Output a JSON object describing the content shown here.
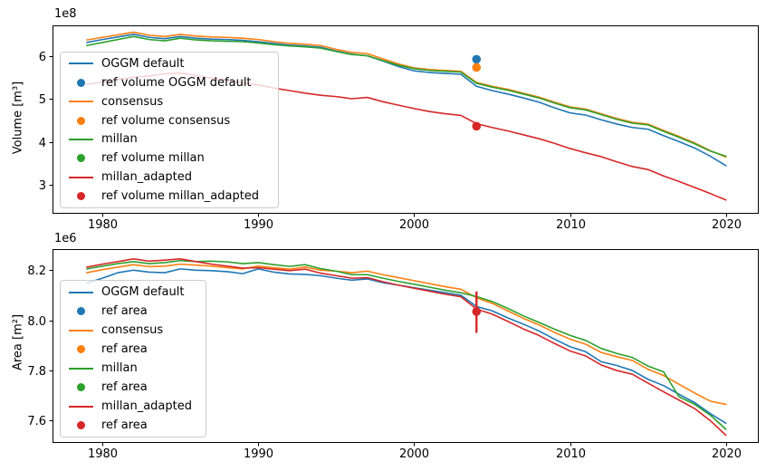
{
  "figure": {
    "background": "#ffffff"
  },
  "colors": {
    "blue": "#1f77b4",
    "orange": "#ff7f0e",
    "green": "#2ca02c",
    "red": "#d62728"
  },
  "chart_data": [
    {
      "type": "line",
      "title": "",
      "xlabel": "",
      "ylabel": "Volume [m³]",
      "offset_label": "1e8",
      "legend_position": "upper left",
      "grid": false,
      "x": [
        1979,
        1980,
        1981,
        1982,
        1983,
        1984,
        1985,
        1986,
        1987,
        1988,
        1989,
        1990,
        1991,
        1992,
        1993,
        1994,
        1995,
        1996,
        1997,
        1998,
        1999,
        2000,
        2001,
        2002,
        2003,
        2004,
        2005,
        2006,
        2007,
        2008,
        2009,
        2010,
        2011,
        2012,
        2013,
        2014,
        2015,
        2016,
        2017,
        2018,
        2019,
        2020
      ],
      "xlim": [
        1976.8,
        2022.05
      ],
      "ylim": [
        2.35,
        6.72
      ],
      "xticks": [
        "1980",
        "1990",
        "2000",
        "2010",
        "2020"
      ],
      "xtick_values": [
        1980,
        1990,
        2000,
        2010,
        2020
      ],
      "yticks": [
        "3",
        "4",
        "5",
        "6"
      ],
      "ytick_values": [
        3,
        4,
        5,
        6
      ],
      "unit_scale": "1e8",
      "series": [
        {
          "name": "OGGM default",
          "color": "#1f77b4",
          "values": [
            6.32,
            6.39,
            6.45,
            6.51,
            6.44,
            6.41,
            6.46,
            6.42,
            6.4,
            6.39,
            6.37,
            6.34,
            6.3,
            6.26,
            6.24,
            6.21,
            6.12,
            6.05,
            6.01,
            5.89,
            5.76,
            5.66,
            5.62,
            5.6,
            5.58,
            5.3,
            5.2,
            5.12,
            5.03,
            4.93,
            4.8,
            4.68,
            4.63,
            4.52,
            4.42,
            4.34,
            4.3,
            4.15,
            4.01,
            3.86,
            3.67,
            3.45
          ]
        },
        {
          "name": "consensus",
          "color": "#ff7f0e",
          "values": [
            6.38,
            6.44,
            6.5,
            6.56,
            6.49,
            6.46,
            6.51,
            6.47,
            6.45,
            6.44,
            6.42,
            6.39,
            6.34,
            6.3,
            6.28,
            6.25,
            6.16,
            6.09,
            6.06,
            5.94,
            5.82,
            5.73,
            5.69,
            5.67,
            5.65,
            5.39,
            5.3,
            5.23,
            5.14,
            5.05,
            4.93,
            4.82,
            4.77,
            4.66,
            4.55,
            4.46,
            4.42,
            4.27,
            4.13,
            3.98,
            3.8,
            3.65
          ]
        },
        {
          "name": "millan",
          "color": "#2ca02c",
          "values": [
            6.25,
            6.32,
            6.39,
            6.46,
            6.39,
            6.36,
            6.42,
            6.38,
            6.36,
            6.35,
            6.34,
            6.31,
            6.27,
            6.24,
            6.22,
            6.19,
            6.11,
            6.04,
            6.01,
            5.9,
            5.79,
            5.71,
            5.67,
            5.65,
            5.63,
            5.37,
            5.28,
            5.21,
            5.12,
            5.03,
            4.91,
            4.8,
            4.75,
            4.64,
            4.53,
            4.44,
            4.4,
            4.25,
            4.11,
            3.96,
            3.79,
            3.67
          ]
        },
        {
          "name": "millan_adapted",
          "color": "#d62728",
          "values": [
            5.34,
            5.4,
            5.46,
            5.51,
            5.54,
            5.59,
            5.61,
            5.55,
            5.49,
            5.44,
            5.38,
            5.33,
            5.26,
            5.2,
            5.14,
            5.09,
            5.06,
            5.01,
            5.04,
            4.94,
            4.86,
            4.78,
            4.71,
            4.66,
            4.62,
            4.43,
            4.34,
            4.26,
            4.17,
            4.08,
            3.97,
            3.85,
            3.75,
            3.66,
            3.54,
            3.43,
            3.36,
            3.21,
            3.08,
            2.94,
            2.8,
            2.65
          ]
        }
      ],
      "ref_points": [
        {
          "label": "ref volume OGGM default",
          "color": "#1f77b4",
          "x": 2004,
          "y": 5.93
        },
        {
          "label": "ref volume consensus",
          "color": "#ff7f0e",
          "x": 2004,
          "y": 5.74
        },
        {
          "label": "ref volume millan_adapted",
          "color": "#d62728",
          "x": 2004,
          "y": 4.37
        }
      ],
      "legend": [
        {
          "handle": "line",
          "color": "#1f77b4",
          "label": "OGGM default"
        },
        {
          "handle": "marker",
          "color": "#1f77b4",
          "label": "ref volume OGGM default"
        },
        {
          "handle": "line",
          "color": "#ff7f0e",
          "label": "consensus"
        },
        {
          "handle": "marker",
          "color": "#ff7f0e",
          "label": "ref volume consensus"
        },
        {
          "handle": "line",
          "color": "#2ca02c",
          "label": "millan"
        },
        {
          "handle": "marker",
          "color": "#2ca02c",
          "label": "ref volume millan"
        },
        {
          "handle": "line",
          "color": "#d62728",
          "label": "millan_adapted"
        },
        {
          "handle": "marker",
          "color": "#d62728",
          "label": "ref volume millan_adapted"
        }
      ]
    },
    {
      "type": "line",
      "title": "",
      "xlabel": "",
      "ylabel": "Area [m²]",
      "offset_label": "1e6",
      "legend_position": "upper left",
      "grid": false,
      "x": [
        1979,
        1980,
        1981,
        1982,
        1983,
        1984,
        1985,
        1986,
        1987,
        1988,
        1989,
        1990,
        1991,
        1992,
        1993,
        1994,
        1995,
        1996,
        1997,
        1998,
        1999,
        2000,
        2001,
        2002,
        2003,
        2004,
        2005,
        2006,
        2007,
        2008,
        2009,
        2010,
        2011,
        2012,
        2013,
        2014,
        2015,
        2016,
        2017,
        2018,
        2019,
        2020
      ],
      "xlim": [
        1976.8,
        2022.05
      ],
      "ylim": [
        7.515,
        8.284
      ],
      "xticks": [
        "1980",
        "1990",
        "2000",
        "2010",
        "2020"
      ],
      "xtick_values": [
        1980,
        1990,
        2000,
        2010,
        2020
      ],
      "yticks": [
        "7.6",
        "7.8",
        "8.0",
        "8.2"
      ],
      "ytick_values": [
        7.6,
        7.8,
        8.0,
        8.2
      ],
      "unit_scale": "1e6",
      "series": [
        {
          "name": "OGGM default",
          "color": "#1f77b4",
          "values": [
            8.148,
            8.168,
            8.19,
            8.2,
            8.192,
            8.19,
            8.205,
            8.2,
            8.198,
            8.194,
            8.186,
            8.205,
            8.192,
            8.185,
            8.183,
            8.178,
            8.168,
            8.16,
            8.165,
            8.15,
            8.14,
            8.13,
            8.12,
            8.11,
            8.1,
            8.055,
            8.038,
            8.01,
            7.985,
            7.958,
            7.925,
            7.895,
            7.875,
            7.835,
            7.82,
            7.8,
            7.765,
            7.74,
            7.705,
            7.672,
            7.628,
            7.59
          ]
        },
        {
          "name": "consensus",
          "color": "#ff7f0e",
          "values": [
            8.19,
            8.202,
            8.212,
            8.222,
            8.214,
            8.216,
            8.224,
            8.22,
            8.216,
            8.21,
            8.205,
            8.216,
            8.21,
            8.204,
            8.212,
            8.2,
            8.196,
            8.19,
            8.196,
            8.182,
            8.17,
            8.158,
            8.146,
            8.134,
            8.124,
            8.09,
            8.068,
            8.038,
            8.008,
            7.982,
            7.952,
            7.925,
            7.905,
            7.872,
            7.855,
            7.84,
            7.805,
            7.78,
            7.745,
            7.71,
            7.678,
            7.665
          ]
        },
        {
          "name": "millan",
          "color": "#2ca02c",
          "values": [
            8.205,
            8.216,
            8.226,
            8.234,
            8.226,
            8.23,
            8.238,
            8.234,
            8.236,
            8.233,
            8.226,
            8.23,
            8.222,
            8.215,
            8.222,
            8.206,
            8.196,
            8.182,
            8.182,
            8.168,
            8.155,
            8.144,
            8.132,
            8.12,
            8.11,
            8.095,
            8.075,
            8.048,
            8.018,
            7.992,
            7.965,
            7.94,
            7.92,
            7.888,
            7.868,
            7.852,
            7.818,
            7.795,
            7.695,
            7.665,
            7.622,
            7.566
          ]
        },
        {
          "name": "millan_adapted",
          "color": "#d62728",
          "values": [
            8.212,
            8.224,
            8.234,
            8.245,
            8.236,
            8.24,
            8.245,
            8.234,
            8.224,
            8.216,
            8.208,
            8.21,
            8.204,
            8.198,
            8.204,
            8.188,
            8.178,
            8.168,
            8.17,
            8.154,
            8.14,
            8.128,
            8.116,
            8.104,
            8.094,
            8.045,
            8.025,
            7.996,
            7.966,
            7.94,
            7.908,
            7.878,
            7.858,
            7.822,
            7.8,
            7.785,
            7.75,
            7.715,
            7.682,
            7.648,
            7.6,
            7.542
          ]
        }
      ],
      "ref_points": [
        {
          "label": "ref area",
          "color": "#d62728",
          "x": 2004,
          "y": 8.035,
          "yerr_low": 7.95,
          "yerr_high": 8.115
        }
      ],
      "legend": [
        {
          "handle": "line",
          "color": "#1f77b4",
          "label": "OGGM default"
        },
        {
          "handle": "marker",
          "color": "#1f77b4",
          "label": "ref area"
        },
        {
          "handle": "line",
          "color": "#ff7f0e",
          "label": "consensus"
        },
        {
          "handle": "marker",
          "color": "#ff7f0e",
          "label": "ref area"
        },
        {
          "handle": "line",
          "color": "#2ca02c",
          "label": "millan"
        },
        {
          "handle": "marker",
          "color": "#2ca02c",
          "label": "ref area"
        },
        {
          "handle": "line",
          "color": "#d62728",
          "label": "millan_adapted"
        },
        {
          "handle": "marker",
          "color": "#d62728",
          "label": "ref area"
        }
      ]
    }
  ]
}
